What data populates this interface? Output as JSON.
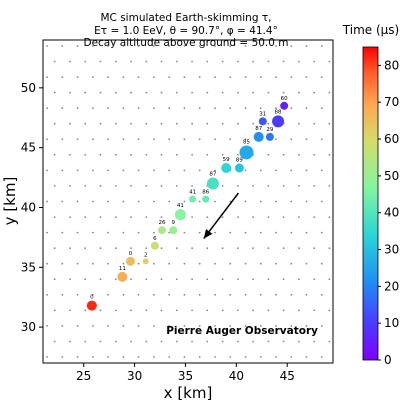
{
  "chart_data": {
    "type": "scatter",
    "title_lines": [
      "MC simulated  Earth-skimming τ,",
      "Eτ = 1.0 EeV, θ = 90.7°, φ = 41.4°",
      "Decay altitude above ground = 50.0 m"
    ],
    "xlabel": "x [km]",
    "ylabel": "y [km]",
    "xlim": [
      21,
      49.5
    ],
    "ylim": [
      27,
      54
    ],
    "xticks": [
      25,
      30,
      35,
      40,
      45
    ],
    "yticks": [
      30,
      35,
      40,
      45,
      50
    ],
    "annotation": "Pierre Auger Observatory",
    "colorbar": {
      "label": "Time (μs)",
      "range": [
        0,
        85
      ],
      "ticks": [
        0,
        10,
        20,
        30,
        40,
        50,
        60,
        70,
        80
      ],
      "colormap": "rainbow"
    },
    "grid_stations": {
      "color": "#888888",
      "x_spacing": 1.5,
      "y_spacing": 1.3
    },
    "arrow": {
      "from": [
        40.2,
        41.2
      ],
      "to": [
        36.8,
        37.4
      ]
    },
    "points": [
      {
        "x": 25.8,
        "y": 31.8,
        "label": "0",
        "time": 82,
        "size": 5
      },
      {
        "x": 28.8,
        "y": 34.2,
        "label": "11",
        "time": 68,
        "size": 5
      },
      {
        "x": 29.6,
        "y": 35.5,
        "label": "0",
        "time": 65,
        "size": 4.5
      },
      {
        "x": 31.1,
        "y": 35.5,
        "label": "2",
        "time": 62,
        "size": 3
      },
      {
        "x": 32.0,
        "y": 36.8,
        "label": "6",
        "time": 58,
        "size": 4
      },
      {
        "x": 32.7,
        "y": 38.1,
        "label": "26",
        "time": 53,
        "size": 4
      },
      {
        "x": 33.8,
        "y": 38.1,
        "label": "9",
        "time": 50,
        "size": 4
      },
      {
        "x": 34.5,
        "y": 39.4,
        "label": "41",
        "time": 47,
        "size": 5.5
      },
      {
        "x": 35.7,
        "y": 40.7,
        "label": "41",
        "time": 44,
        "size": 3.5
      },
      {
        "x": 37.0,
        "y": 40.7,
        "label": "86",
        "time": 42,
        "size": 3.5
      },
      {
        "x": 37.7,
        "y": 42.0,
        "label": "87",
        "time": 38,
        "size": 6
      },
      {
        "x": 39.0,
        "y": 43.3,
        "label": "59",
        "time": 34,
        "size": 5
      },
      {
        "x": 40.3,
        "y": 43.3,
        "label": "89",
        "time": 31,
        "size": 4.5
      },
      {
        "x": 41.0,
        "y": 44.6,
        "label": "85",
        "time": 26,
        "size": 7
      },
      {
        "x": 42.2,
        "y": 45.9,
        "label": "87",
        "time": 22,
        "size": 5
      },
      {
        "x": 43.3,
        "y": 45.9,
        "label": "29",
        "time": 18,
        "size": 4
      },
      {
        "x": 42.6,
        "y": 47.2,
        "label": "31",
        "time": 14,
        "size": 4
      },
      {
        "x": 44.1,
        "y": 47.2,
        "label": "88",
        "time": 10,
        "size": 6
      },
      {
        "x": 44.7,
        "y": 48.5,
        "label": "60",
        "time": 6,
        "size": 4
      }
    ]
  }
}
